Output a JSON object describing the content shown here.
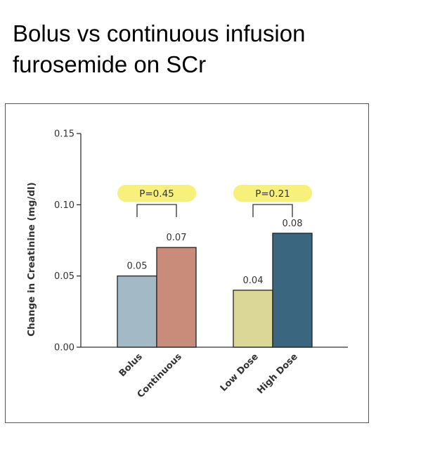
{
  "slide": {
    "title_line1": "Bolus vs continuous infusion",
    "title_line2": "furosemide on SCr"
  },
  "chart_data": {
    "type": "bar",
    "ylabel": "Change in Creatinine (mg/dl)",
    "ylim": [
      0,
      0.15
    ],
    "yticks": [
      "0.00",
      "0.05",
      "0.10",
      "0.15"
    ],
    "ytick_values": [
      0,
      0.05,
      0.1,
      0.15
    ],
    "grid": false,
    "groups": [
      {
        "bars": [
          {
            "label": "Bolus",
            "value": 0.05,
            "value_label": "0.05",
            "color": "#a3bac6"
          },
          {
            "label": "Continuous",
            "value": 0.07,
            "value_label": "0.07",
            "color": "#c98c7b"
          }
        ],
        "pvalue": "P=0.45"
      },
      {
        "bars": [
          {
            "label": "Low Dose",
            "value": 0.04,
            "value_label": "0.04",
            "color": "#dbd796"
          },
          {
            "label": "High Dose",
            "value": 0.08,
            "value_label": "0.08",
            "color": "#3a6680"
          }
        ],
        "pvalue": "P=0.21"
      }
    ],
    "highlight_color": "#f7f07a"
  }
}
